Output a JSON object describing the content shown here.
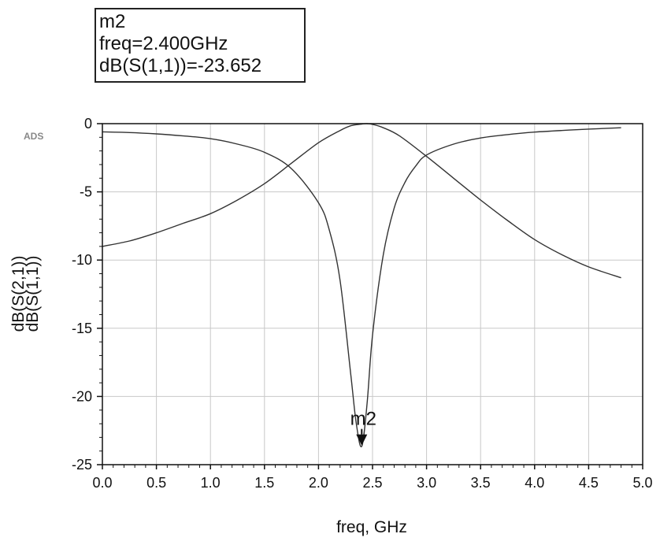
{
  "marker_readout": {
    "name": "m2",
    "freq_line": "freq=2.400GHz",
    "value_line": "dB(S(1,1))=-23.652"
  },
  "watermark": "ADS",
  "colors": {
    "curve": "#333333",
    "grid": "#c8c8c8",
    "axis": "#111111"
  },
  "chart_data": {
    "type": "line",
    "xlabel": "freq, GHz",
    "ylabel_lines": [
      "dB(S(2,1))",
      "dB(S(1,1))"
    ],
    "xlim": [
      0.0,
      5.0
    ],
    "ylim": [
      -25,
      0
    ],
    "x_ticks": [
      "0.0",
      "0.5",
      "1.0",
      "1.5",
      "2.0",
      "2.5",
      "3.0",
      "3.5",
      "4.0",
      "4.5",
      "5.0"
    ],
    "y_ticks": [
      "0",
      "-5",
      "-10",
      "-15",
      "-20",
      "-25"
    ],
    "grid": true,
    "series": [
      {
        "x": [
          0.0,
          0.25,
          0.5,
          0.75,
          1.0,
          1.25,
          1.5,
          1.75,
          2.0,
          2.1,
          2.2,
          2.3,
          2.35,
          2.4,
          2.45,
          2.5,
          2.6,
          2.7,
          2.8,
          2.9,
          3.0,
          3.25,
          3.5,
          3.75,
          4.0,
          4.25,
          4.5,
          4.8
        ],
        "y": [
          -0.6,
          -0.65,
          -0.75,
          -0.9,
          -1.1,
          -1.5,
          -2.1,
          -3.3,
          -5.8,
          -7.8,
          -11.5,
          -18.5,
          -22.0,
          -23.652,
          -20.5,
          -15.5,
          -9.6,
          -6.2,
          -4.3,
          -3.1,
          -2.3,
          -1.5,
          -1.05,
          -0.8,
          -0.62,
          -0.5,
          -0.4,
          -0.3
        ]
      },
      {
        "x": [
          0.0,
          0.25,
          0.5,
          0.75,
          1.0,
          1.25,
          1.5,
          1.75,
          2.0,
          2.2,
          2.3,
          2.4,
          2.45,
          2.5,
          2.6,
          2.75,
          3.0,
          3.25,
          3.5,
          3.75,
          4.0,
          4.25,
          4.5,
          4.8
        ],
        "y": [
          -9.0,
          -8.6,
          -8.0,
          -7.3,
          -6.6,
          -5.6,
          -4.4,
          -2.9,
          -1.4,
          -0.5,
          -0.15,
          -0.03,
          0.0,
          -0.05,
          -0.3,
          -0.9,
          -2.4,
          -4.0,
          -5.6,
          -7.1,
          -8.5,
          -9.6,
          -10.5,
          -11.3
        ]
      }
    ],
    "marker": {
      "name": "m2",
      "x": 2.4,
      "y": -23.652
    }
  }
}
